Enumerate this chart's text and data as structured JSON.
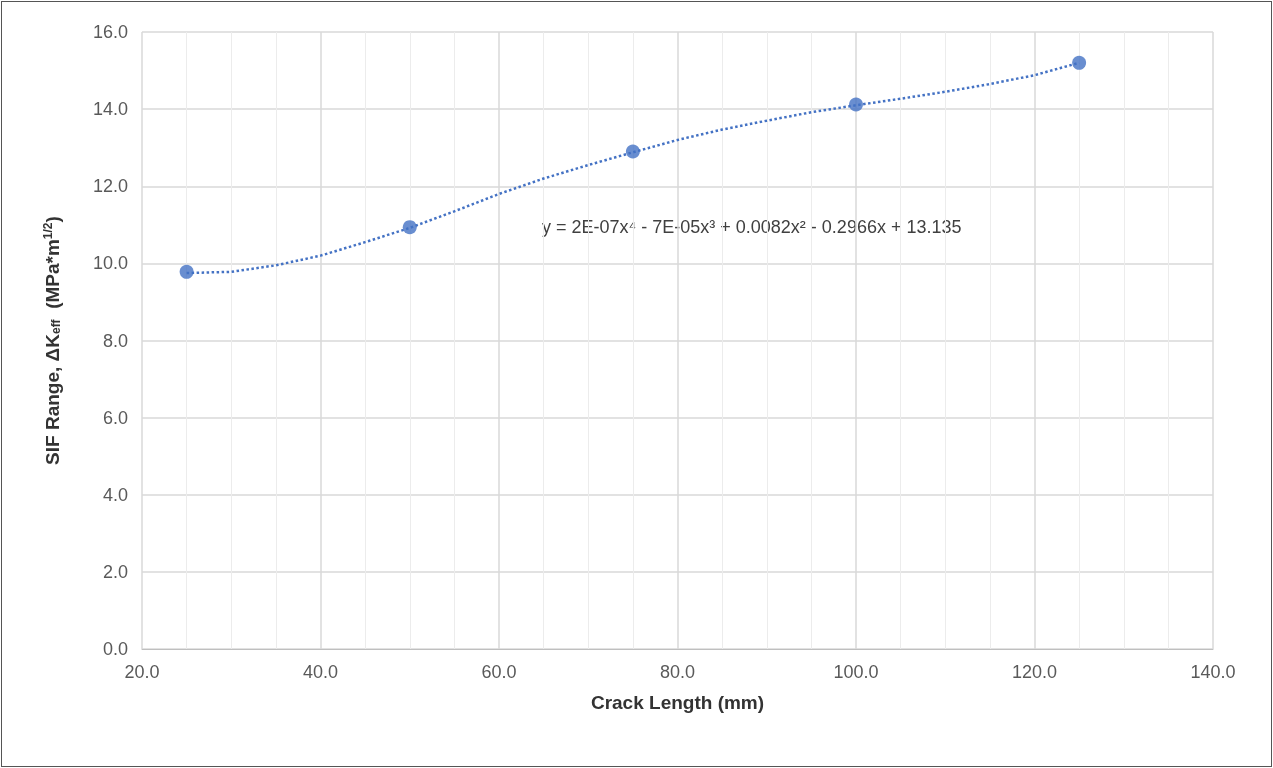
{
  "chart_data": {
    "type": "scatter",
    "xlabel": "Crack Length (mm)",
    "ylabel": "SIF Range, ΔK$_{eff}$  (MPa*m$^{1/2}$)",
    "xlim": [
      20,
      140
    ],
    "xticks": [
      {
        "value": 20,
        "label": "20.0"
      },
      {
        "value": 40,
        "label": "40.0"
      },
      {
        "value": 60,
        "label": "60.0"
      },
      {
        "value": 80,
        "label": "80.0"
      },
      {
        "value": 100,
        "label": "100.0"
      },
      {
        "value": 120,
        "label": "120.0"
      },
      {
        "value": 140,
        "label": "140.0"
      }
    ],
    "ylim": [
      0,
      16
    ],
    "yticks": [
      {
        "value": 0,
        "label": "0.0"
      },
      {
        "value": 2,
        "label": "2.0"
      },
      {
        "value": 4,
        "label": "4.0"
      },
      {
        "value": 6,
        "label": "6.0"
      },
      {
        "value": 8,
        "label": "8.0"
      },
      {
        "value": 10,
        "label": "10.0"
      },
      {
        "value": 12,
        "label": "12.0"
      },
      {
        "value": 14,
        "label": "14.0"
      },
      {
        "value": 16,
        "label": "16.0"
      }
    ],
    "grid": true,
    "series": [
      {
        "type": "scatter",
        "color": "#4472c4",
        "marker": "circle",
        "x": [
          25,
          50,
          75,
          100,
          125
        ],
        "values": [
          9.78,
          10.94,
          12.9,
          14.12,
          15.2
        ]
      },
      {
        "type": "line",
        "color": "#4472c4",
        "marker": "none",
        "line_style": "dotted",
        "x": [
          25,
          30,
          35,
          40,
          45,
          50,
          55,
          60,
          65,
          70,
          75,
          80,
          85,
          90,
          95,
          100,
          105,
          110,
          115,
          120,
          125
        ],
        "values": [
          9.75,
          9.78,
          9.95,
          10.2,
          10.55,
          10.92,
          11.35,
          11.8,
          12.2,
          12.55,
          12.88,
          13.2,
          13.47,
          13.7,
          13.92,
          14.1,
          14.27,
          14.45,
          14.65,
          14.88,
          15.2
        ]
      }
    ],
    "annotations": [
      "y = 2E-07x⁴ - 7E-05x³ + 0.0082x² - 0.2966x + 13.135"
    ]
  }
}
